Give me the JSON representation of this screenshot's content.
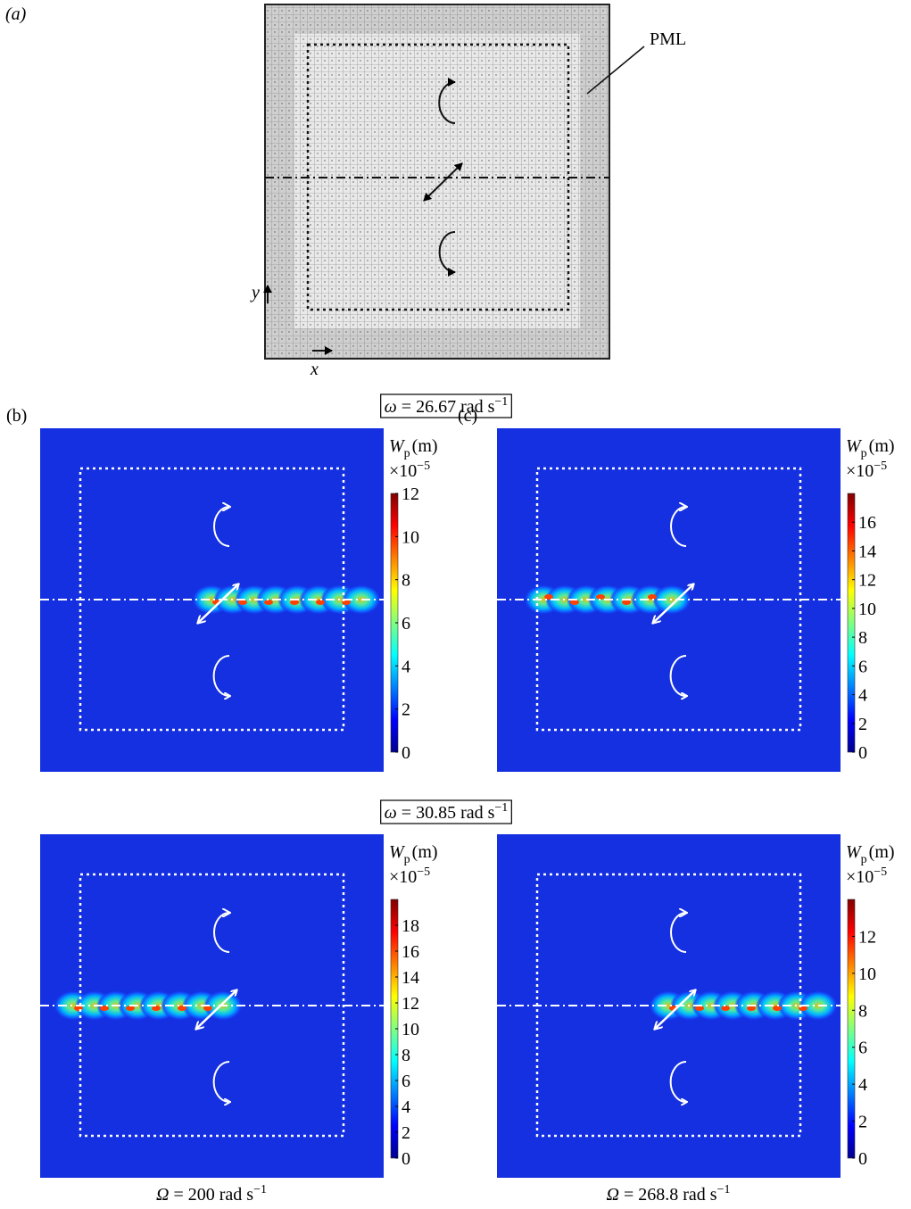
{
  "panel_a": {
    "label": "(a)",
    "pml": "PML",
    "x_axis": "x",
    "y_axis": "y"
  },
  "rows": [
    {
      "omega": {
        "symbol": "ω",
        "text": " = 26.67 rad s",
        "sup": "−1"
      },
      "panels": [
        {
          "label": "(b)",
          "colorbar": {
            "symbol": "W",
            "sub": "p",
            "unit": "(m)",
            "scale": "×10",
            "scale_sup": "−5",
            "clim": [
              0,
              12
            ],
            "ticks": [
              0,
              2,
              4,
              6,
              8,
              10,
              12
            ]
          }
        },
        {
          "label": "(c)",
          "colorbar": {
            "symbol": "W",
            "sub": "p",
            "unit": "(m)",
            "scale": "×10",
            "scale_sup": "−5",
            "clim": [
              0,
              18
            ],
            "ticks": [
              0,
              2,
              4,
              6,
              8,
              10,
              12,
              14,
              16
            ]
          }
        }
      ]
    },
    {
      "omega": {
        "symbol": "ω",
        "text": " = 30.85 rad s",
        "sup": "−1"
      },
      "panels": [
        {
          "colorbar": {
            "symbol": "W",
            "sub": "p",
            "unit": "(m)",
            "scale": "×10",
            "scale_sup": "−5",
            "clim": [
              0,
              20
            ],
            "ticks": [
              0,
              2,
              4,
              6,
              8,
              10,
              12,
              14,
              16,
              18
            ]
          },
          "caption": {
            "symbol": "Ω",
            "text": " = 200 rad s",
            "sup": "−1"
          }
        },
        {
          "colorbar": {
            "symbol": "W",
            "sub": "p",
            "unit": "(m)",
            "scale": "×10",
            "scale_sup": "−5",
            "clim": [
              0,
              14
            ],
            "ticks": [
              0,
              2,
              4,
              6,
              8,
              10,
              12
            ]
          },
          "caption": {
            "symbol": "Ω",
            "text": " = 268.8 rad s",
            "sup": "−1"
          }
        }
      ]
    }
  ]
}
